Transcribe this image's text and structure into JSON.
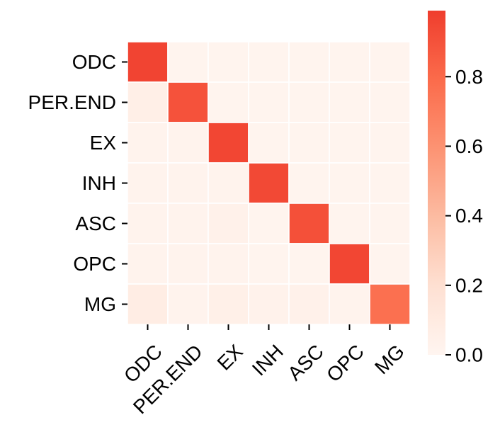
{
  "chart_data": {
    "type": "heatmap",
    "title": "",
    "xlabel": "",
    "ylabel": "",
    "x_categories": [
      "ODC",
      "PER.END",
      "EX",
      "INH",
      "ASC",
      "OPC",
      "MG"
    ],
    "y_categories": [
      "ODC",
      "PER.END",
      "EX",
      "INH",
      "ASC",
      "OPC",
      "MG"
    ],
    "values": [
      [
        0.96,
        0.01,
        0.01,
        0.01,
        0.01,
        0.01,
        0.01
      ],
      [
        0.06,
        0.9,
        0.01,
        0.01,
        0.01,
        0.01,
        0.01
      ],
      [
        0.02,
        0.02,
        0.95,
        0.01,
        0.01,
        0.01,
        0.01
      ],
      [
        0.02,
        0.02,
        0.02,
        0.94,
        0.01,
        0.01,
        0.01
      ],
      [
        0.02,
        0.02,
        0.04,
        0.01,
        0.91,
        0.01,
        0.01
      ],
      [
        0.02,
        0.02,
        0.02,
        0.01,
        0.01,
        0.95,
        0.01
      ],
      [
        0.08,
        0.02,
        0.05,
        0.03,
        0.04,
        0.02,
        0.77
      ]
    ],
    "colorscale": {
      "name": "Reds",
      "vmin": 0.0,
      "vmax": 0.99,
      "ticks": [
        "0.0",
        "0.2",
        "0.4",
        "0.6",
        "0.8"
      ],
      "tick_values": [
        0.0,
        0.2,
        0.4,
        0.6,
        0.8
      ]
    },
    "x_tick_rotation_deg": -45,
    "grid": false
  }
}
